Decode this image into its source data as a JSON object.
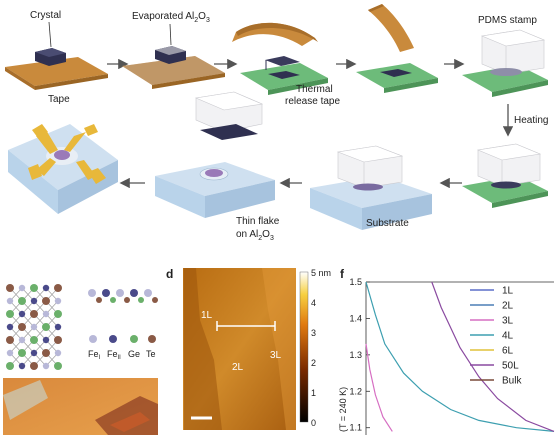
{
  "schematic": {
    "crystal_label": "Crystal",
    "tape_label": "Tape",
    "evaporated_label": "Evaporated Al",
    "evaporated_sub": "2",
    "evaporated_mid": "O",
    "evaporated_sub2": "3",
    "thermal_line1": "Thermal",
    "thermal_line2": "release tape",
    "pdms_label": "PDMS stamp",
    "heating_label": "Heating",
    "thinflake_line1": "Thin flake",
    "thinflake_line2": "on Al",
    "thinflake_sub": "2",
    "thinflake_mid": "O",
    "thinflake_sub2": "3",
    "substrate_label": "Substrate"
  },
  "panel_d": {
    "letter": "d",
    "labels": [
      "1L",
      "2L",
      "3L"
    ],
    "colorbar_ticks": [
      "5 nm",
      "4",
      "3",
      "2",
      "1",
      "0"
    ]
  },
  "panel_atoms": {
    "legend": [
      "Fe",
      "Fe",
      "Ge",
      "Te"
    ],
    "legend_subs": [
      "I",
      "II",
      "",
      ""
    ]
  },
  "chart_data": {
    "type": "line",
    "panel": "f",
    "ylabel_visible": "(T = 240 K)",
    "ylim": [
      1.08,
      1.5
    ],
    "yticks": [
      1.1,
      1.2,
      1.3,
      1.4,
      1.5
    ],
    "legend": [
      "1L",
      "2L",
      "3L",
      "4L",
      "6L",
      "50L",
      "Bulk"
    ],
    "legend_colors": [
      "#5b6ec9",
      "#4c7fb6",
      "#d66ec2",
      "#3d9fb0",
      "#e0c23a",
      "#8a4aa0",
      "#7a4a3a"
    ],
    "series": [
      {
        "name": "4L",
        "color": "#3d9fb0",
        "x": [
          0.0,
          0.05,
          0.1,
          0.2,
          0.3,
          0.45,
          0.6,
          0.8,
          1.0
        ],
        "y": [
          1.5,
          1.41,
          1.33,
          1.25,
          1.2,
          1.15,
          1.12,
          1.1,
          1.09
        ]
      },
      {
        "name": "50L",
        "color": "#8a4aa0",
        "x": [
          0.35,
          0.4,
          0.5,
          0.6,
          0.7,
          0.85,
          1.0
        ],
        "y": [
          1.5,
          1.43,
          1.32,
          1.24,
          1.18,
          1.12,
          1.09
        ]
      },
      {
        "name": "3L",
        "color": "#d66ec2",
        "x": [
          0.0,
          0.02,
          0.05,
          0.09,
          0.14
        ],
        "y": [
          1.33,
          1.26,
          1.19,
          1.13,
          1.09
        ]
      }
    ]
  },
  "colors": {
    "tape": "#c98a3c",
    "green": "#6dbb7a",
    "substrate": "#b9d3ea",
    "dark_flake": "#2f3050",
    "arrow": "#555555",
    "afm_bg": "#c27a1c"
  }
}
